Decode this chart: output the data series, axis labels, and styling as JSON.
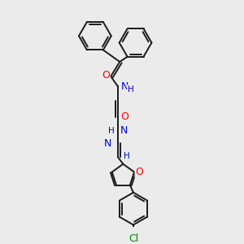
{
  "background_color": "#ebebeb",
  "bond_color": "#1a1a1a",
  "atom_colors": {
    "O": "#ff0000",
    "N": "#0000cd",
    "Cl": "#008000",
    "H": "#808080"
  },
  "figsize": [
    3.0,
    3.0
  ],
  "dpi": 100
}
